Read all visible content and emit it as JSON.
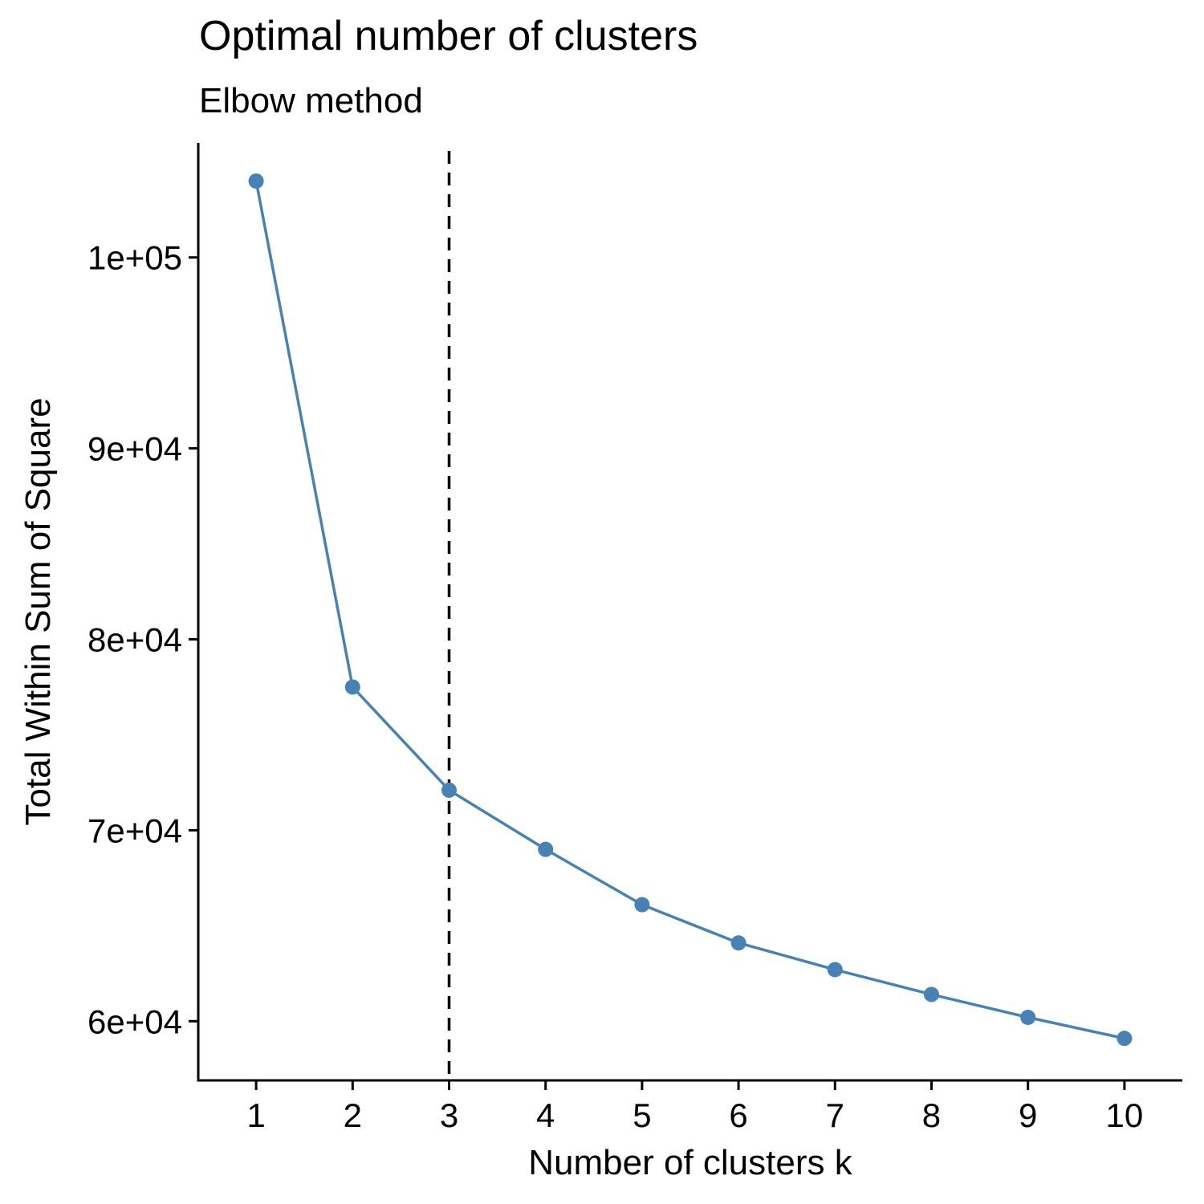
{
  "chart_data": {
    "type": "line",
    "title": "Optimal number of clusters",
    "subtitle": "Elbow method",
    "xlabel": "Number of clusters k",
    "ylabel": "Total Within Sum of Square",
    "x": [
      1,
      2,
      3,
      4,
      5,
      6,
      7,
      8,
      9,
      10
    ],
    "x_tick_labels": [
      "1",
      "2",
      "3",
      "4",
      "5",
      "6",
      "7",
      "8",
      "9",
      "10"
    ],
    "series": [
      {
        "values": [
          104000,
          77500,
          72100,
          69000,
          66100,
          64100,
          62700,
          61400,
          60200,
          59100
        ]
      }
    ],
    "y_ticks": [
      60000,
      70000,
      80000,
      90000,
      100000
    ],
    "y_tick_labels": [
      "6e+04",
      "7e+04",
      "8e+04",
      "9e+04",
      "1e+05"
    ],
    "xlim": [
      0.4,
      10.6
    ],
    "ylim": [
      56900,
      106000
    ],
    "reference_line": {
      "x": 3,
      "style": "dashed"
    },
    "grid": false,
    "legend": "none",
    "colors": {
      "series": "#4682b4",
      "reference_line": "#000000",
      "axis": "#000000"
    }
  }
}
